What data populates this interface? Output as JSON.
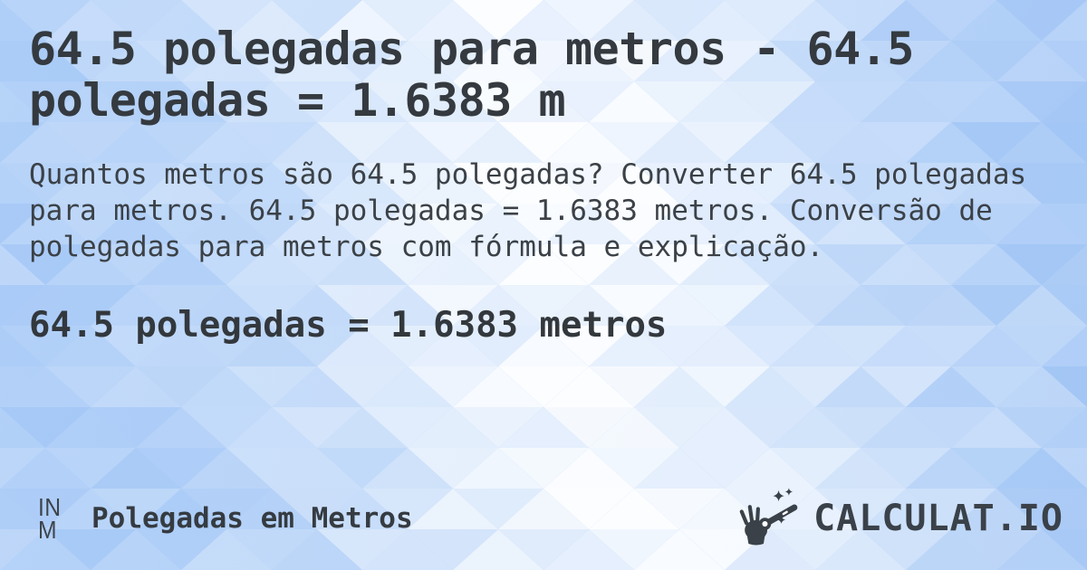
{
  "title": "64.5 polegadas para metros - 64.5 polegadas = 1.6383 m",
  "description": "Quantos metros são 64.5 polegadas? Converter 64.5 polegadas para metros. 64.5 polegadas = 1.6383 metros. Conversão de polegadas para metros com fórmula e explicação.",
  "result_line": "64.5 polegadas = 1.6383 metros",
  "footer": {
    "badge_top": "IN",
    "badge_bottom": "M",
    "converter_label": "Polegadas em Metros",
    "logo_text": "CALCULAT.IO"
  },
  "icons": {
    "logo_icon": "magic-wand-hand-icon"
  },
  "colors": {
    "text_dark": "#343a3f",
    "text_body": "#3b4147",
    "logo": "#3a4149",
    "background_blue": "#a0c5f6",
    "background_light": "#ffffff"
  }
}
